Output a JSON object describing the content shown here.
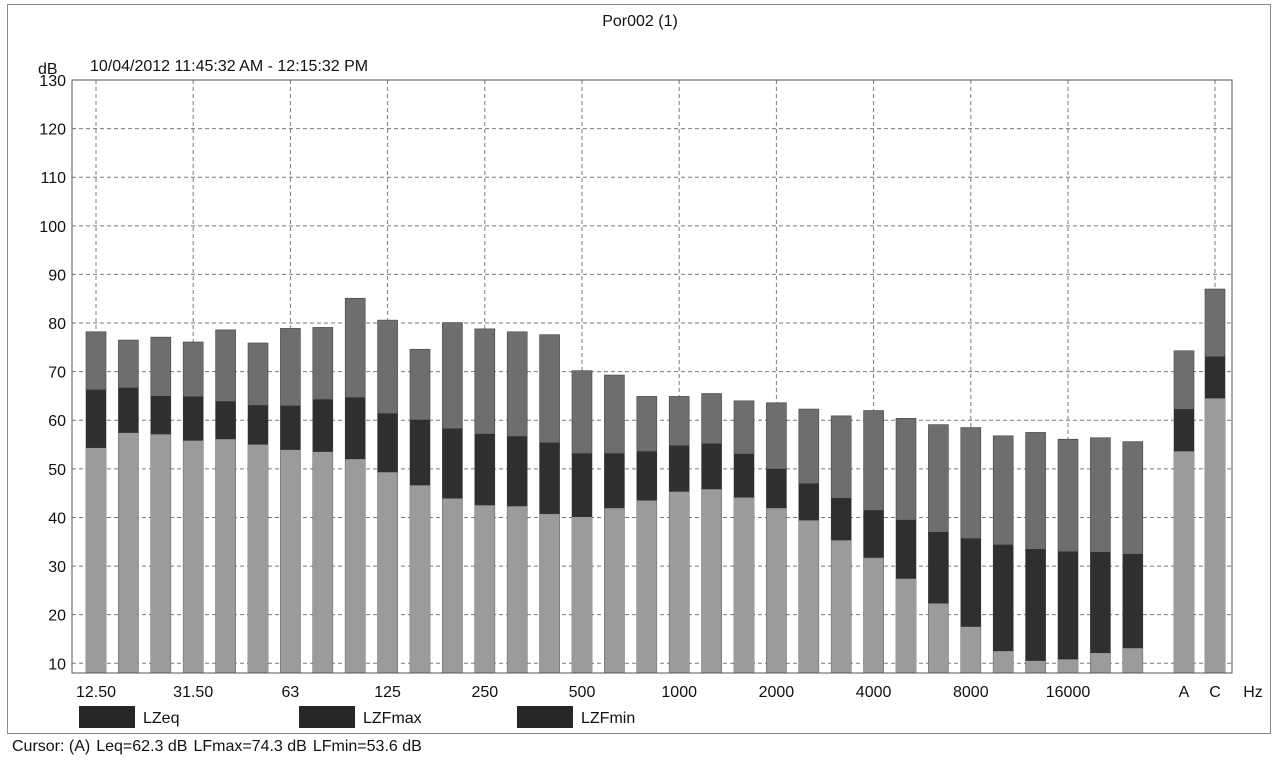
{
  "chart_data": {
    "type": "bar",
    "title": "Por002 (1)",
    "subtitle": "10/04/2012 11:45:32 AM - 12:15:32 PM",
    "ylabel": "dB",
    "xunit": "Hz",
    "ylim": [
      8,
      130
    ],
    "yticks": [
      10,
      20,
      30,
      40,
      50,
      60,
      70,
      80,
      90,
      100,
      110,
      120,
      130
    ],
    "grid": true,
    "legend_position": "bottom-left",
    "x_tick_labels": [
      "12.50",
      "31.50",
      "63",
      "125",
      "250",
      "500",
      "1000",
      "2000",
      "4000",
      "8000",
      "16000",
      "A",
      "C"
    ],
    "categories": [
      "12.5",
      "16",
      "20",
      "25",
      "31.5",
      "40",
      "50",
      "63",
      "80",
      "100",
      "125",
      "160",
      "200",
      "250",
      "315",
      "400",
      "500",
      "630",
      "800",
      "1000",
      "1250",
      "1600",
      "2000",
      "2500",
      "3150",
      "4000",
      "5000",
      "6300",
      "8000",
      "10000",
      "12500",
      "16000",
      "20000",
      "A",
      "C"
    ],
    "series": [
      {
        "name": "LZeq",
        "values": [
          66.3,
          66.7,
          65.0,
          64.9,
          63.9,
          63.1,
          63.0,
          64.3,
          64.7,
          61.4,
          60.1,
          58.3,
          57.2,
          56.7,
          55.4,
          53.2,
          53.2,
          53.6,
          54.8,
          55.2,
          53.1,
          50.0,
          47.0,
          44.0,
          41.5,
          39.5,
          37.0,
          35.7,
          34.4,
          33.5,
          33.0,
          32.9,
          32.5,
          62.3,
          73.1
        ]
      },
      {
        "name": "LZFmax",
        "values": [
          78.2,
          76.5,
          77.1,
          76.1,
          78.6,
          75.9,
          78.9,
          79.1,
          85.1,
          80.6,
          74.6,
          80.1,
          78.8,
          78.2,
          77.6,
          70.2,
          69.3,
          64.9,
          64.9,
          65.5,
          64.0,
          63.6,
          62.3,
          60.9,
          62.0,
          60.4,
          59.1,
          58.5,
          56.8,
          57.5,
          56.1,
          56.4,
          55.6,
          74.3,
          87.0
        ]
      },
      {
        "name": "LZFmin",
        "values": [
          54.3,
          57.4,
          57.1,
          55.8,
          56.1,
          55.0,
          53.9,
          53.5,
          52.0,
          49.3,
          46.6,
          43.9,
          42.5,
          42.3,
          40.7,
          40.1,
          41.9,
          43.5,
          45.3,
          45.8,
          44.1,
          41.9,
          39.4,
          35.3,
          31.7,
          27.4,
          22.3,
          17.5,
          12.5,
          10.5,
          10.8,
          12.1,
          13.1,
          53.6,
          64.5
        ]
      }
    ],
    "colors": {
      "LZeq": "#2f2f2f",
      "LZFmax": "#6e6e6e",
      "LZFmin": "#9b9b9b",
      "grid": "#7a7a7a",
      "axis": "#555555"
    }
  },
  "legend": [
    {
      "label": "LZeq",
      "color": "#262626"
    },
    {
      "label": "LZFmax",
      "color": "#262626"
    },
    {
      "label": "LZFmin",
      "color": "#262626"
    }
  ],
  "status": {
    "cursor_label": "Cursor: (A)",
    "leq": "Leq=62.3 dB",
    "lfmax": "LFmax=74.3 dB",
    "lfmin": "LFmin=53.6 dB"
  }
}
